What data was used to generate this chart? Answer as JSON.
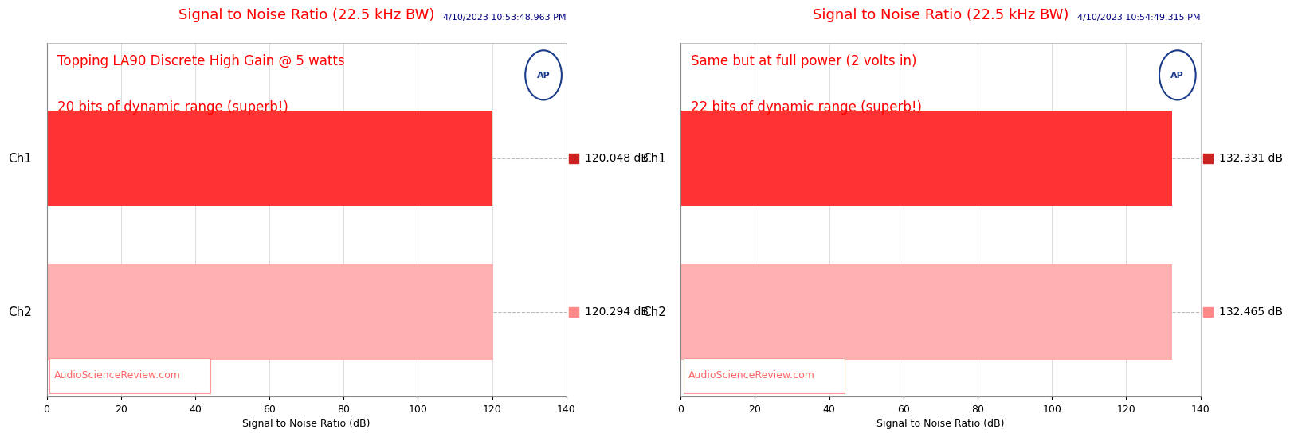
{
  "charts": [
    {
      "title": "Signal to Noise Ratio (22.5 kHz BW)",
      "datetime": "4/10/2023 10:53:48.963 PM",
      "annotation_line1": "Topping LA90 Discrete High Gain @ 5 watts",
      "annotation_line2": "20 bits of dynamic range (superb!)",
      "channels": [
        "Ch1",
        "Ch2"
      ],
      "values": [
        120.048,
        120.294
      ],
      "bar_colors": [
        "#FF3333",
        "#FFB0B0"
      ],
      "marker_colors": [
        "#CC2222",
        "#FF8888"
      ],
      "xlim": [
        0,
        140
      ],
      "xticks": [
        0,
        20,
        40,
        60,
        80,
        100,
        120,
        140
      ],
      "xlabel": "Signal to Noise Ratio (dB)",
      "value_labels": [
        "120.048 dB",
        "120.294 dB"
      ],
      "watermark": "AudioScienceReview.com"
    },
    {
      "title": "Signal to Noise Ratio (22.5 kHz BW)",
      "datetime": "4/10/2023 10:54:49.315 PM",
      "annotation_line1": "Same but at full power (2 volts in)",
      "annotation_line2": "22 bits of dynamic range (superb!)",
      "channels": [
        "Ch1",
        "Ch2"
      ],
      "values": [
        132.331,
        132.465
      ],
      "bar_colors": [
        "#FF3333",
        "#FFB0B0"
      ],
      "marker_colors": [
        "#CC2222",
        "#FF8888"
      ],
      "xlim": [
        0,
        140
      ],
      "xticks": [
        0,
        20,
        40,
        60,
        80,
        100,
        120,
        140
      ],
      "xlabel": "Signal to Noise Ratio (dB)",
      "value_labels": [
        "132.331 dB",
        "132.465 dB"
      ],
      "watermark": "AudioScienceReview.com"
    }
  ],
  "title_color": "#FF0000",
  "datetime_color": "#000080",
  "annotation_color": "#FF0000",
  "watermark_color": "#FF6666",
  "watermark_box_edge": "#FF9999",
  "watermark_box_face": "#FFFFFF",
  "ap_text_color": "#1A3A8A",
  "background_color": "#FFFFFF",
  "plot_bg_color": "#FFFFFF",
  "grid_color": "#DDDDDD",
  "title_fontsize": 13,
  "datetime_fontsize": 8,
  "annotation_fontsize": 12,
  "xlabel_fontsize": 9,
  "tick_fontsize": 9,
  "channel_fontsize": 11,
  "value_fontsize": 10,
  "watermark_fontsize": 9
}
